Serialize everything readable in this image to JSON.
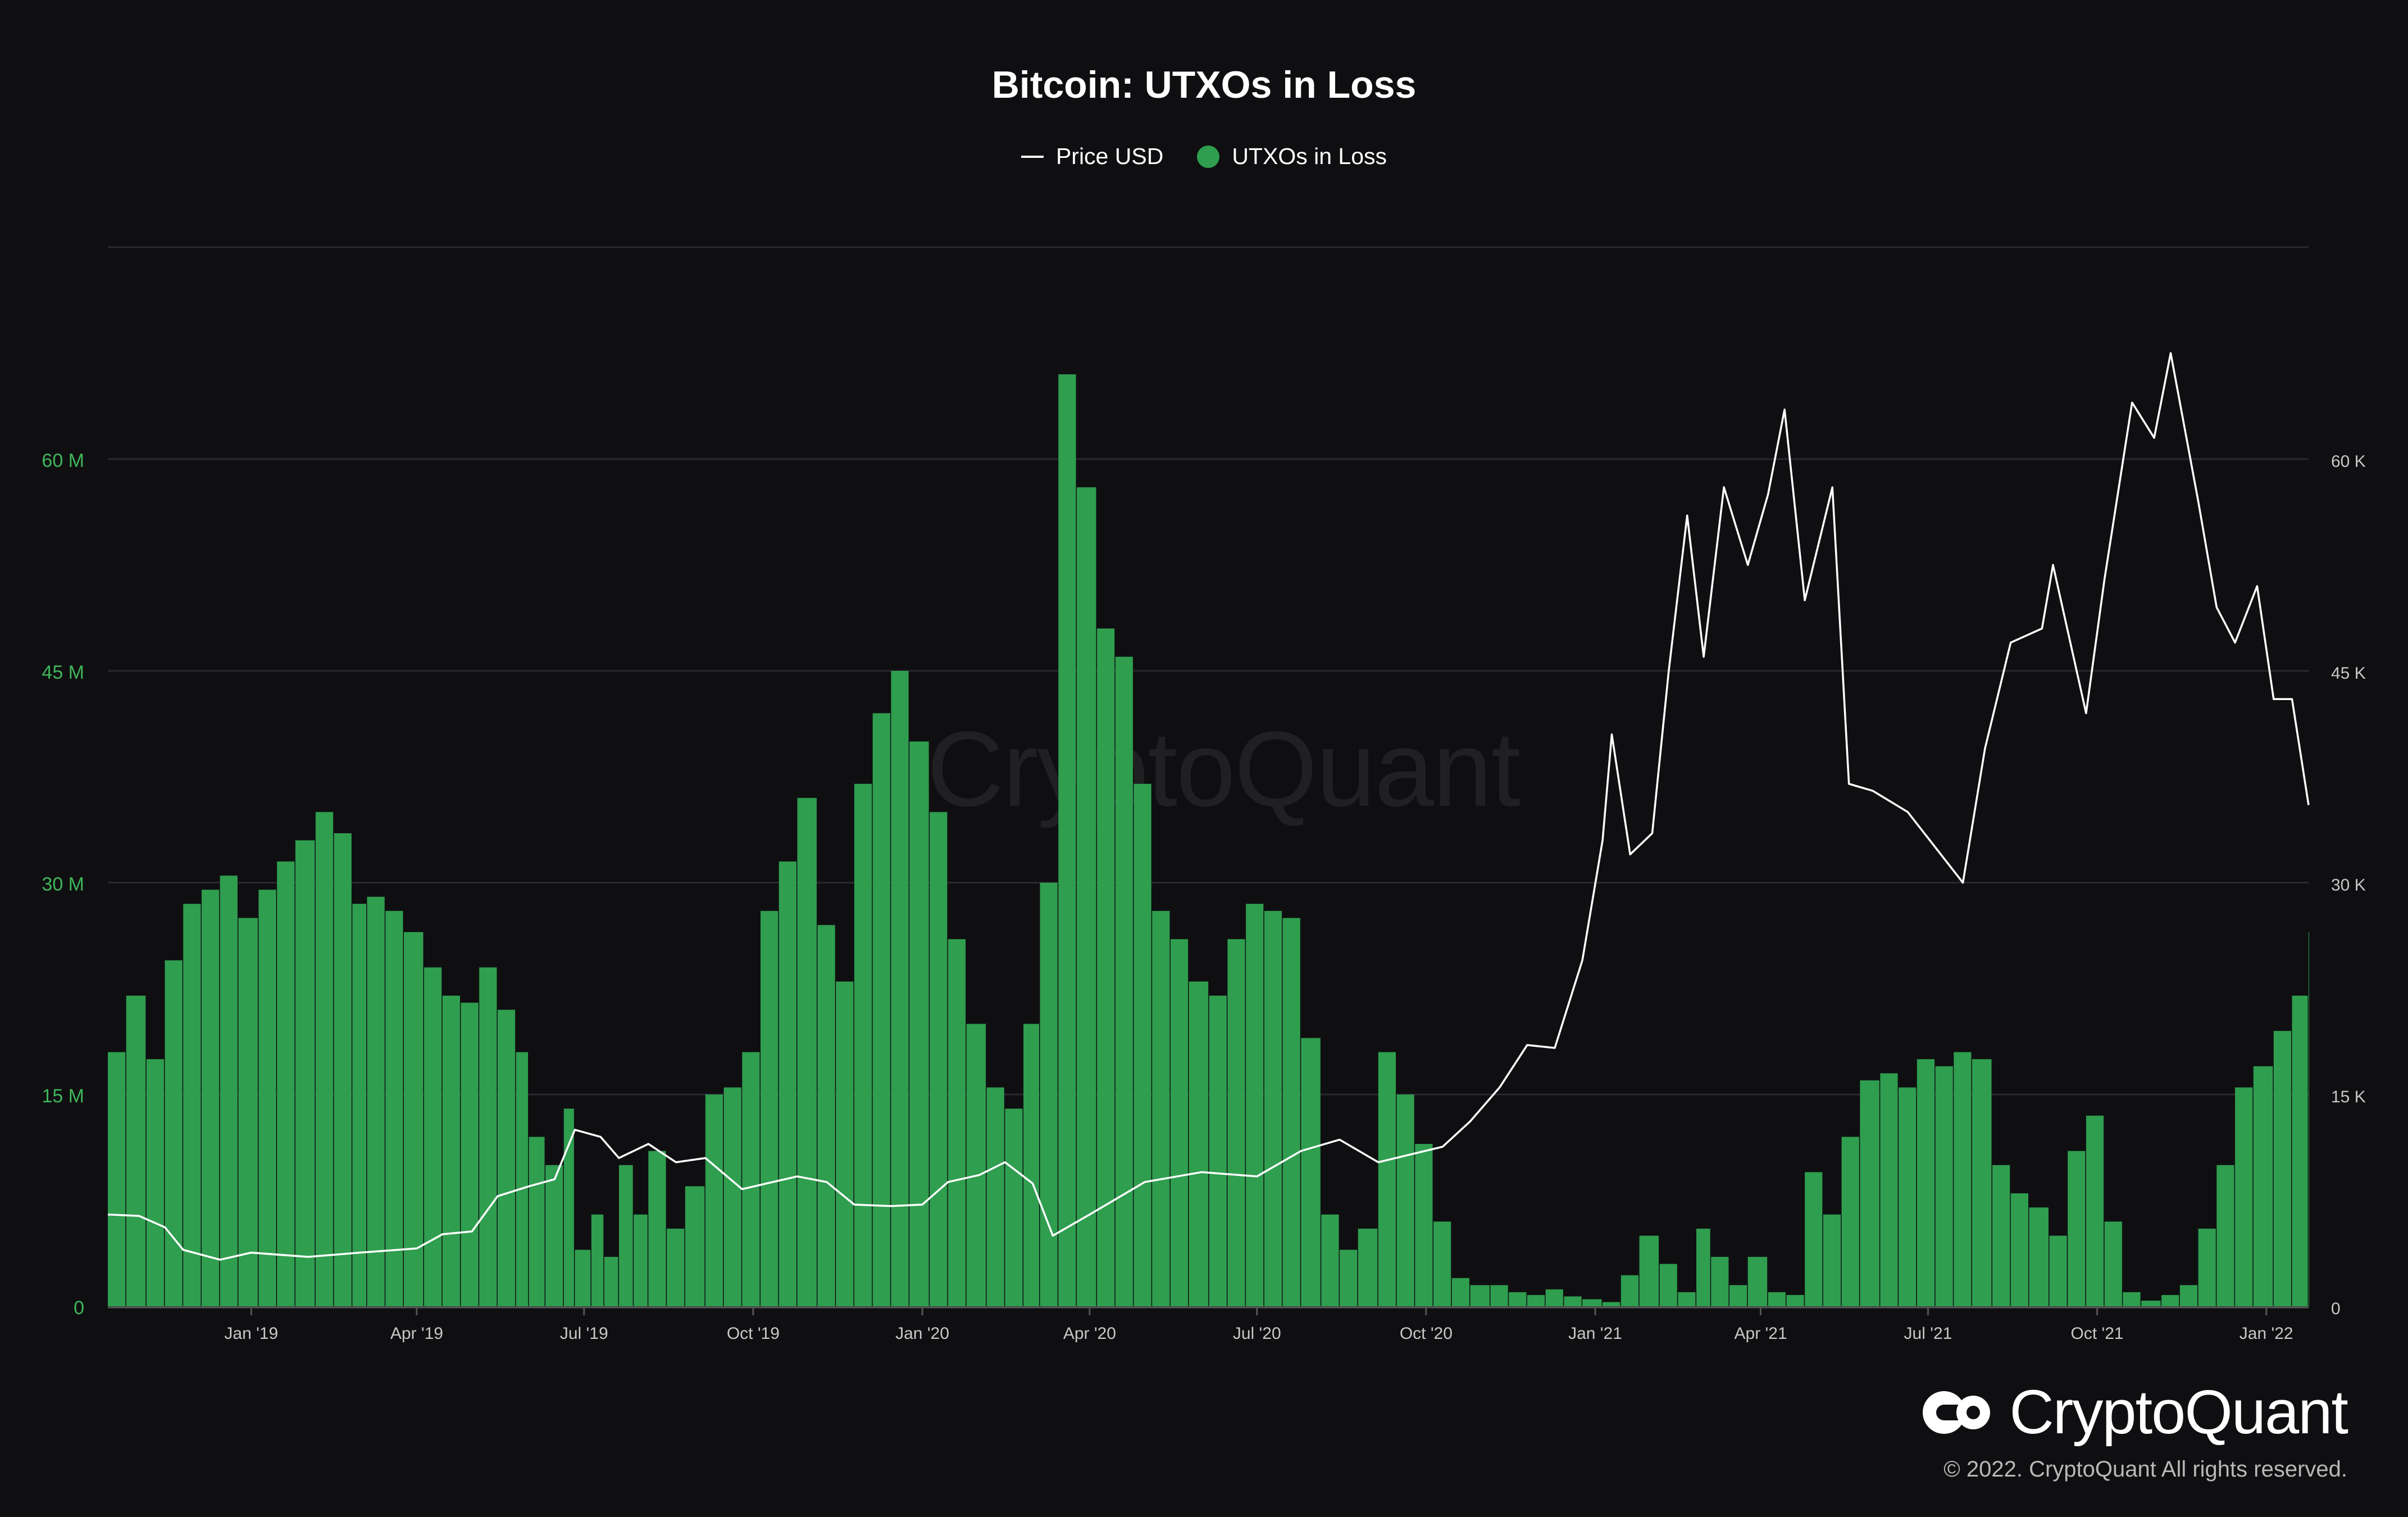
{
  "title": "Bitcoin: UTXOs in Loss",
  "legend": {
    "price_label": "Price USD",
    "utxo_label": "UTXOs in Loss"
  },
  "watermark": "CryptoQuant",
  "brand": {
    "name": "CryptoQuant",
    "copyright": "© 2022. CryptoQuant All rights reserved."
  },
  "colors": {
    "background": "#0f0f11",
    "bars": "#2f9e4f",
    "price_line": "#ffffff",
    "left_axis_labels": "#3fb55a",
    "right_axis_labels": "#c8c8c8",
    "grid": "#2a2a2e"
  },
  "chart_data": {
    "type": "bar",
    "title": "Bitcoin: UTXOs in Loss",
    "x_range": [
      "2018-10-15",
      "2022-01-24"
    ],
    "x_ticks": [
      "Jan '19",
      "Apr '19",
      "Jul '19",
      "Oct '19",
      "Jan '20",
      "Apr '20",
      "Jul '20",
      "Oct '20",
      "Jan '21",
      "Apr '21",
      "Jul '21",
      "Oct '21",
      "Jan '22"
    ],
    "x_tick_dates": [
      "2019-01-01",
      "2019-04-01",
      "2019-07-01",
      "2019-10-01",
      "2020-01-01",
      "2020-04-01",
      "2020-07-01",
      "2020-10-01",
      "2021-01-01",
      "2021-04-01",
      "2021-07-01",
      "2021-10-01",
      "2022-01-01"
    ],
    "y_left": {
      "ticks": [
        "0",
        "15 M",
        "30 M",
        "45 M",
        "60 M"
      ],
      "tick_values": [
        0,
        15000000,
        30000000,
        45000000,
        60000000
      ],
      "range": [
        0,
        75000000
      ]
    },
    "y_right": {
      "ticks": [
        "0",
        "15 K",
        "30 K",
        "45 K",
        "60 K"
      ],
      "tick_values": [
        0,
        15000,
        30000,
        45000,
        60000
      ],
      "range": [
        0,
        75000
      ]
    },
    "grid": true,
    "legend_position": "top-center",
    "series": [
      {
        "name": "UTXOs in Loss",
        "type": "bar",
        "axis": "left",
        "points": [
          [
            "2018-10-15",
            18000000
          ],
          [
            "2018-10-25",
            22000000
          ],
          [
            "2018-11-05",
            17500000
          ],
          [
            "2018-11-15",
            24500000
          ],
          [
            "2018-11-25",
            28500000
          ],
          [
            "2018-12-05",
            29500000
          ],
          [
            "2018-12-15",
            30500000
          ],
          [
            "2018-12-25",
            27500000
          ],
          [
            "2019-01-05",
            29500000
          ],
          [
            "2019-01-15",
            31500000
          ],
          [
            "2019-01-25",
            33000000
          ],
          [
            "2019-02-05",
            35000000
          ],
          [
            "2019-02-15",
            33500000
          ],
          [
            "2019-02-25",
            28500000
          ],
          [
            "2019-03-05",
            29000000
          ],
          [
            "2019-03-15",
            28000000
          ],
          [
            "2019-03-25",
            26500000
          ],
          [
            "2019-04-05",
            24000000
          ],
          [
            "2019-04-15",
            22000000
          ],
          [
            "2019-04-25",
            21500000
          ],
          [
            "2019-05-05",
            24000000
          ],
          [
            "2019-05-15",
            21000000
          ],
          [
            "2019-05-25",
            18000000
          ],
          [
            "2019-06-01",
            12000000
          ],
          [
            "2019-06-10",
            10000000
          ],
          [
            "2019-06-20",
            14000000
          ],
          [
            "2019-06-26",
            4000000
          ],
          [
            "2019-07-05",
            6500000
          ],
          [
            "2019-07-12",
            3500000
          ],
          [
            "2019-07-20",
            10000000
          ],
          [
            "2019-07-28",
            6500000
          ],
          [
            "2019-08-05",
            11000000
          ],
          [
            "2019-08-15",
            5500000
          ],
          [
            "2019-08-25",
            8500000
          ],
          [
            "2019-09-05",
            15000000
          ],
          [
            "2019-09-15",
            15500000
          ],
          [
            "2019-09-25",
            18000000
          ],
          [
            "2019-10-05",
            28000000
          ],
          [
            "2019-10-15",
            31500000
          ],
          [
            "2019-10-25",
            36000000
          ],
          [
            "2019-11-05",
            27000000
          ],
          [
            "2019-11-15",
            23000000
          ],
          [
            "2019-11-25",
            37000000
          ],
          [
            "2019-12-05",
            42000000
          ],
          [
            "2019-12-15",
            45000000
          ],
          [
            "2019-12-25",
            40000000
          ],
          [
            "2020-01-05",
            35000000
          ],
          [
            "2020-01-15",
            26000000
          ],
          [
            "2020-01-25",
            20000000
          ],
          [
            "2020-02-05",
            15500000
          ],
          [
            "2020-02-15",
            14000000
          ],
          [
            "2020-02-25",
            20000000
          ],
          [
            "2020-03-05",
            30000000
          ],
          [
            "2020-03-15",
            66000000
          ],
          [
            "2020-03-25",
            58000000
          ],
          [
            "2020-04-05",
            48000000
          ],
          [
            "2020-04-15",
            46000000
          ],
          [
            "2020-04-25",
            37000000
          ],
          [
            "2020-05-05",
            28000000
          ],
          [
            "2020-05-15",
            26000000
          ],
          [
            "2020-05-25",
            23000000
          ],
          [
            "2020-06-05",
            22000000
          ],
          [
            "2020-06-15",
            26000000
          ],
          [
            "2020-06-25",
            28500000
          ],
          [
            "2020-07-05",
            28000000
          ],
          [
            "2020-07-15",
            27500000
          ],
          [
            "2020-07-25",
            19000000
          ],
          [
            "2020-08-05",
            6500000
          ],
          [
            "2020-08-15",
            4000000
          ],
          [
            "2020-08-25",
            5500000
          ],
          [
            "2020-09-05",
            18000000
          ],
          [
            "2020-09-15",
            15000000
          ],
          [
            "2020-09-25",
            11500000
          ],
          [
            "2020-10-05",
            6000000
          ],
          [
            "2020-10-15",
            2000000
          ],
          [
            "2020-10-25",
            1500000
          ],
          [
            "2020-11-05",
            1500000
          ],
          [
            "2020-11-15",
            1000000
          ],
          [
            "2020-11-25",
            800000
          ],
          [
            "2020-12-05",
            1200000
          ],
          [
            "2020-12-15",
            700000
          ],
          [
            "2020-12-25",
            500000
          ],
          [
            "2021-01-05",
            300000
          ],
          [
            "2021-01-15",
            2200000
          ],
          [
            "2021-01-25",
            5000000
          ],
          [
            "2021-02-05",
            3000000
          ],
          [
            "2021-02-15",
            1000000
          ],
          [
            "2021-02-25",
            5500000
          ],
          [
            "2021-03-05",
            3500000
          ],
          [
            "2021-03-15",
            1500000
          ],
          [
            "2021-03-25",
            3500000
          ],
          [
            "2021-04-05",
            1000000
          ],
          [
            "2021-04-15",
            800000
          ],
          [
            "2021-04-25",
            9500000
          ],
          [
            "2021-05-05",
            6500000
          ],
          [
            "2021-05-15",
            12000000
          ],
          [
            "2021-05-25",
            16000000
          ],
          [
            "2021-06-05",
            16500000
          ],
          [
            "2021-06-15",
            15500000
          ],
          [
            "2021-06-25",
            17500000
          ],
          [
            "2021-07-05",
            17000000
          ],
          [
            "2021-07-15",
            18000000
          ],
          [
            "2021-07-25",
            17500000
          ],
          [
            "2021-08-05",
            10000000
          ],
          [
            "2021-08-15",
            8000000
          ],
          [
            "2021-08-25",
            7000000
          ],
          [
            "2021-09-05",
            5000000
          ],
          [
            "2021-09-15",
            11000000
          ],
          [
            "2021-09-25",
            13500000
          ],
          [
            "2021-10-05",
            6000000
          ],
          [
            "2021-10-15",
            1000000
          ],
          [
            "2021-10-25",
            400000
          ],
          [
            "2021-11-05",
            800000
          ],
          [
            "2021-11-15",
            1500000
          ],
          [
            "2021-11-25",
            5500000
          ],
          [
            "2021-12-05",
            10000000
          ],
          [
            "2021-12-15",
            15500000
          ],
          [
            "2021-12-25",
            17000000
          ],
          [
            "2022-01-05",
            19500000
          ],
          [
            "2022-01-15",
            22000000
          ],
          [
            "2022-01-24",
            26500000
          ]
        ]
      },
      {
        "name": "Price USD",
        "type": "line",
        "axis": "right",
        "points": [
          [
            "2018-10-15",
            6500
          ],
          [
            "2018-11-01",
            6400
          ],
          [
            "2018-11-15",
            5600
          ],
          [
            "2018-11-25",
            4000
          ],
          [
            "2018-12-15",
            3300
          ],
          [
            "2019-01-01",
            3800
          ],
          [
            "2019-02-01",
            3500
          ],
          [
            "2019-03-01",
            3800
          ],
          [
            "2019-04-01",
            4100
          ],
          [
            "2019-04-15",
            5100
          ],
          [
            "2019-05-01",
            5300
          ],
          [
            "2019-05-15",
            7800
          ],
          [
            "2019-06-01",
            8500
          ],
          [
            "2019-06-15",
            9000
          ],
          [
            "2019-06-26",
            12500
          ],
          [
            "2019-07-10",
            12000
          ],
          [
            "2019-07-20",
            10500
          ],
          [
            "2019-08-05",
            11500
          ],
          [
            "2019-08-20",
            10200
          ],
          [
            "2019-09-05",
            10500
          ],
          [
            "2019-09-25",
            8300
          ],
          [
            "2019-10-25",
            9200
          ],
          [
            "2019-11-10",
            8800
          ],
          [
            "2019-11-25",
            7200
          ],
          [
            "2019-12-15",
            7100
          ],
          [
            "2020-01-01",
            7200
          ],
          [
            "2020-01-15",
            8800
          ],
          [
            "2020-02-01",
            9300
          ],
          [
            "2020-02-15",
            10200
          ],
          [
            "2020-03-01",
            8700
          ],
          [
            "2020-03-12",
            5000
          ],
          [
            "2020-04-01",
            6500
          ],
          [
            "2020-05-01",
            8800
          ],
          [
            "2020-06-01",
            9500
          ],
          [
            "2020-07-01",
            9200
          ],
          [
            "2020-07-25",
            11000
          ],
          [
            "2020-08-15",
            11800
          ],
          [
            "2020-09-05",
            10200
          ],
          [
            "2020-10-10",
            11300
          ],
          [
            "2020-10-25",
            13100
          ],
          [
            "2020-11-10",
            15500
          ],
          [
            "2020-11-25",
            18500
          ],
          [
            "2020-12-10",
            18300
          ],
          [
            "2020-12-25",
            24500
          ],
          [
            "2021-01-05",
            33000
          ],
          [
            "2021-01-10",
            40500
          ],
          [
            "2021-01-20",
            32000
          ],
          [
            "2021-02-01",
            33500
          ],
          [
            "2021-02-10",
            45000
          ],
          [
            "2021-02-20",
            56000
          ],
          [
            "2021-03-01",
            46000
          ],
          [
            "2021-03-12",
            58000
          ],
          [
            "2021-03-25",
            52500
          ],
          [
            "2021-04-05",
            57500
          ],
          [
            "2021-04-14",
            63500
          ],
          [
            "2021-04-25",
            50000
          ],
          [
            "2021-05-10",
            58000
          ],
          [
            "2021-05-19",
            37000
          ],
          [
            "2021-06-01",
            36500
          ],
          [
            "2021-06-20",
            35000
          ],
          [
            "2021-07-20",
            30000
          ],
          [
            "2021-08-01",
            39500
          ],
          [
            "2021-08-15",
            47000
          ],
          [
            "2021-09-01",
            48000
          ],
          [
            "2021-09-07",
            52500
          ],
          [
            "2021-09-25",
            42000
          ],
          [
            "2021-10-05",
            51500
          ],
          [
            "2021-10-20",
            64000
          ],
          [
            "2021-11-01",
            61500
          ],
          [
            "2021-11-10",
            67500
          ],
          [
            "2021-11-25",
            57000
          ],
          [
            "2021-12-05",
            49500
          ],
          [
            "2021-12-15",
            47000
          ],
          [
            "2021-12-27",
            51000
          ],
          [
            "2022-01-05",
            43000
          ],
          [
            "2022-01-15",
            43000
          ],
          [
            "2022-01-24",
            35500
          ]
        ]
      }
    ]
  }
}
